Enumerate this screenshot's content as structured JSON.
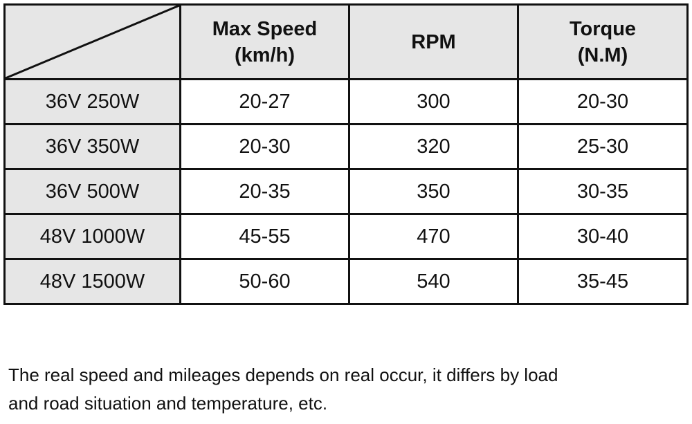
{
  "table": {
    "headers": [
      {
        "line1": "Max Speed",
        "line2": "(km/h)"
      },
      {
        "line1": "RPM",
        "line2": ""
      },
      {
        "line1": "Torque",
        "line2": "(N.M)"
      }
    ],
    "rows": [
      {
        "label": "36V 250W",
        "max_speed": "20-27",
        "rpm": "300",
        "torque": "20-30"
      },
      {
        "label": "36V 350W",
        "max_speed": "20-30",
        "rpm": "320",
        "torque": "25-30"
      },
      {
        "label": "36V 500W",
        "max_speed": "20-35",
        "rpm": "350",
        "torque": "30-35"
      },
      {
        "label": "48V 1000W",
        "max_speed": "45-55",
        "rpm": "470",
        "torque": "30-40"
      },
      {
        "label": "48V 1500W",
        "max_speed": "50-60",
        "rpm": "540",
        "torque": "35-45"
      }
    ]
  },
  "note": {
    "line1": "The real speed and mileages depends on real occur, it differs by load",
    "line2": "and road situation and temperature, etc."
  },
  "colors": {
    "header_bg": "#e6e6e6",
    "border": "#111111"
  }
}
